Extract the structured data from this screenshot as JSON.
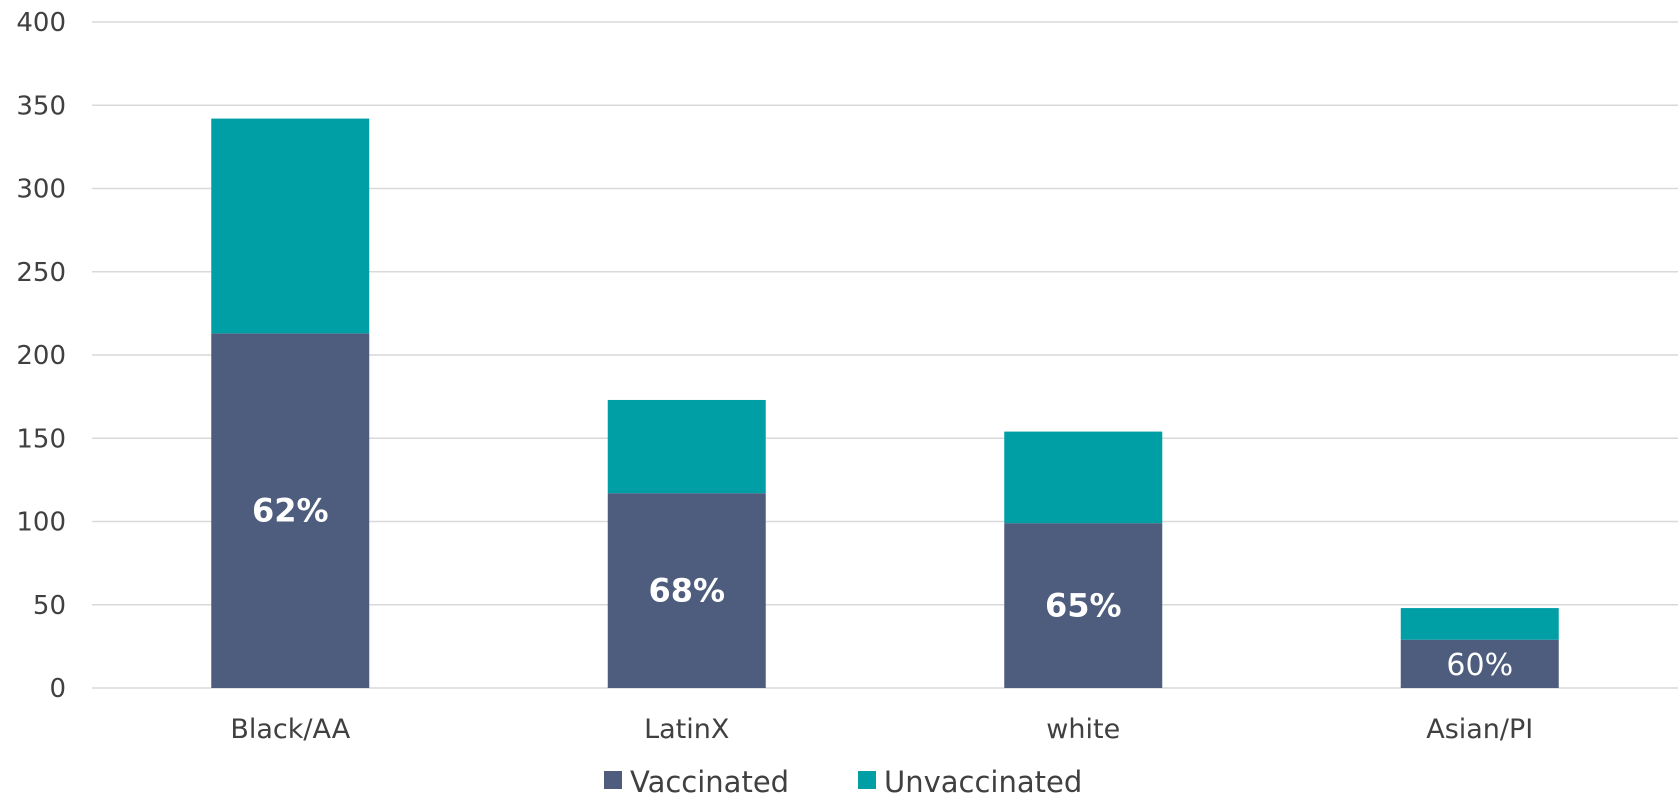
{
  "chart_data": {
    "type": "bar",
    "stacked": true,
    "title": "",
    "xlabel": "",
    "ylabel": "",
    "ylim": [
      0,
      400
    ],
    "yticks": [
      0,
      50,
      100,
      150,
      200,
      250,
      300,
      350,
      400
    ],
    "grid": true,
    "legend_position": "bottom",
    "categories": [
      "Black/AA",
      "LatinX",
      "white",
      "Asian/PI"
    ],
    "series": [
      {
        "name": "Vaccinated",
        "color": "#4E5D7E",
        "values": [
          213,
          117,
          99,
          29
        ]
      },
      {
        "name": "Unvaccinated",
        "color": "#009FA5",
        "values": [
          129,
          56,
          55,
          19
        ]
      }
    ],
    "annotations": [
      {
        "category": "Black/AA",
        "text": "62%",
        "bold": true
      },
      {
        "category": "LatinX",
        "text": "68%",
        "bold": true
      },
      {
        "category": "white",
        "text": "65%",
        "bold": true
      },
      {
        "category": "Asian/PI",
        "text": "60%",
        "bold": false
      }
    ]
  }
}
